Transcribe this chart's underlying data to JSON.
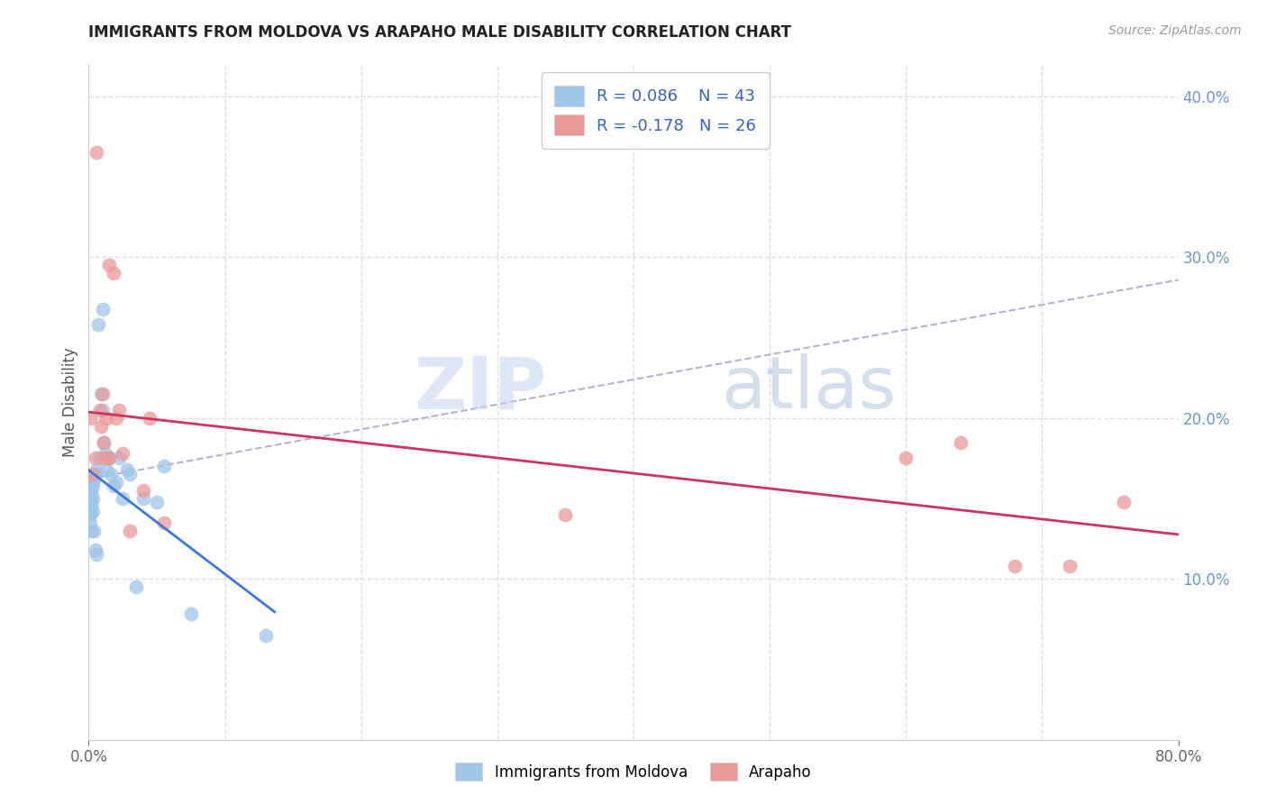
{
  "title": "IMMIGRANTS FROM MOLDOVA VS ARAPAHO MALE DISABILITY CORRELATION CHART",
  "source": "Source: ZipAtlas.com",
  "ylabel": "Male Disability",
  "xlim": [
    0.0,
    0.8
  ],
  "ylim": [
    0.0,
    0.42
  ],
  "y_ticks_right": [
    0.1,
    0.2,
    0.3,
    0.4
  ],
  "y_tick_labels_right": [
    "10.0%",
    "20.0%",
    "30.0%",
    "40.0%"
  ],
  "legend_R1": "0.086",
  "legend_N1": "43",
  "legend_R2": "-0.178",
  "legend_N2": "26",
  "color_blue": "#9fc5e8",
  "color_pink": "#ea9999",
  "color_blue_line": "#3c78d8",
  "color_pink_line": "#cc3366",
  "color_dashed": "#aaaacc",
  "watermark_zip": "ZIP",
  "watermark_atlas": "atlas",
  "blue_x": [
    0.001,
    0.001,
    0.001,
    0.001,
    0.001,
    0.002,
    0.002,
    0.002,
    0.002,
    0.002,
    0.002,
    0.003,
    0.003,
    0.003,
    0.003,
    0.004,
    0.004,
    0.005,
    0.005,
    0.006,
    0.006,
    0.007,
    0.008,
    0.009,
    0.01,
    0.01,
    0.011,
    0.012,
    0.013,
    0.015,
    0.016,
    0.018,
    0.02,
    0.022,
    0.025,
    0.028,
    0.03,
    0.035,
    0.04,
    0.05,
    0.055,
    0.075,
    0.13
  ],
  "blue_y": [
    0.155,
    0.148,
    0.145,
    0.14,
    0.135,
    0.158,
    0.155,
    0.152,
    0.148,
    0.145,
    0.13,
    0.162,
    0.158,
    0.15,
    0.142,
    0.162,
    0.13,
    0.165,
    0.118,
    0.168,
    0.115,
    0.258,
    0.175,
    0.215,
    0.205,
    0.268,
    0.185,
    0.178,
    0.168,
    0.175,
    0.165,
    0.158,
    0.16,
    0.175,
    0.15,
    0.168,
    0.165,
    0.095,
    0.15,
    0.148,
    0.17,
    0.078,
    0.065
  ],
  "pink_x": [
    0.001,
    0.003,
    0.005,
    0.006,
    0.008,
    0.009,
    0.01,
    0.011,
    0.012,
    0.013,
    0.015,
    0.015,
    0.018,
    0.02,
    0.022,
    0.025,
    0.03,
    0.04,
    0.045,
    0.055,
    0.35,
    0.6,
    0.64,
    0.68,
    0.72,
    0.76
  ],
  "pink_y": [
    0.2,
    0.165,
    0.175,
    0.365,
    0.205,
    0.195,
    0.215,
    0.185,
    0.175,
    0.2,
    0.295,
    0.175,
    0.29,
    0.2,
    0.205,
    0.178,
    0.13,
    0.155,
    0.2,
    0.135,
    0.14,
    0.175,
    0.185,
    0.108,
    0.108,
    0.148
  ],
  "background_color": "#ffffff",
  "grid_color": "#dddddd",
  "title_fontsize": 12,
  "axis_fontsize": 12,
  "right_tick_color": "#6699cc"
}
